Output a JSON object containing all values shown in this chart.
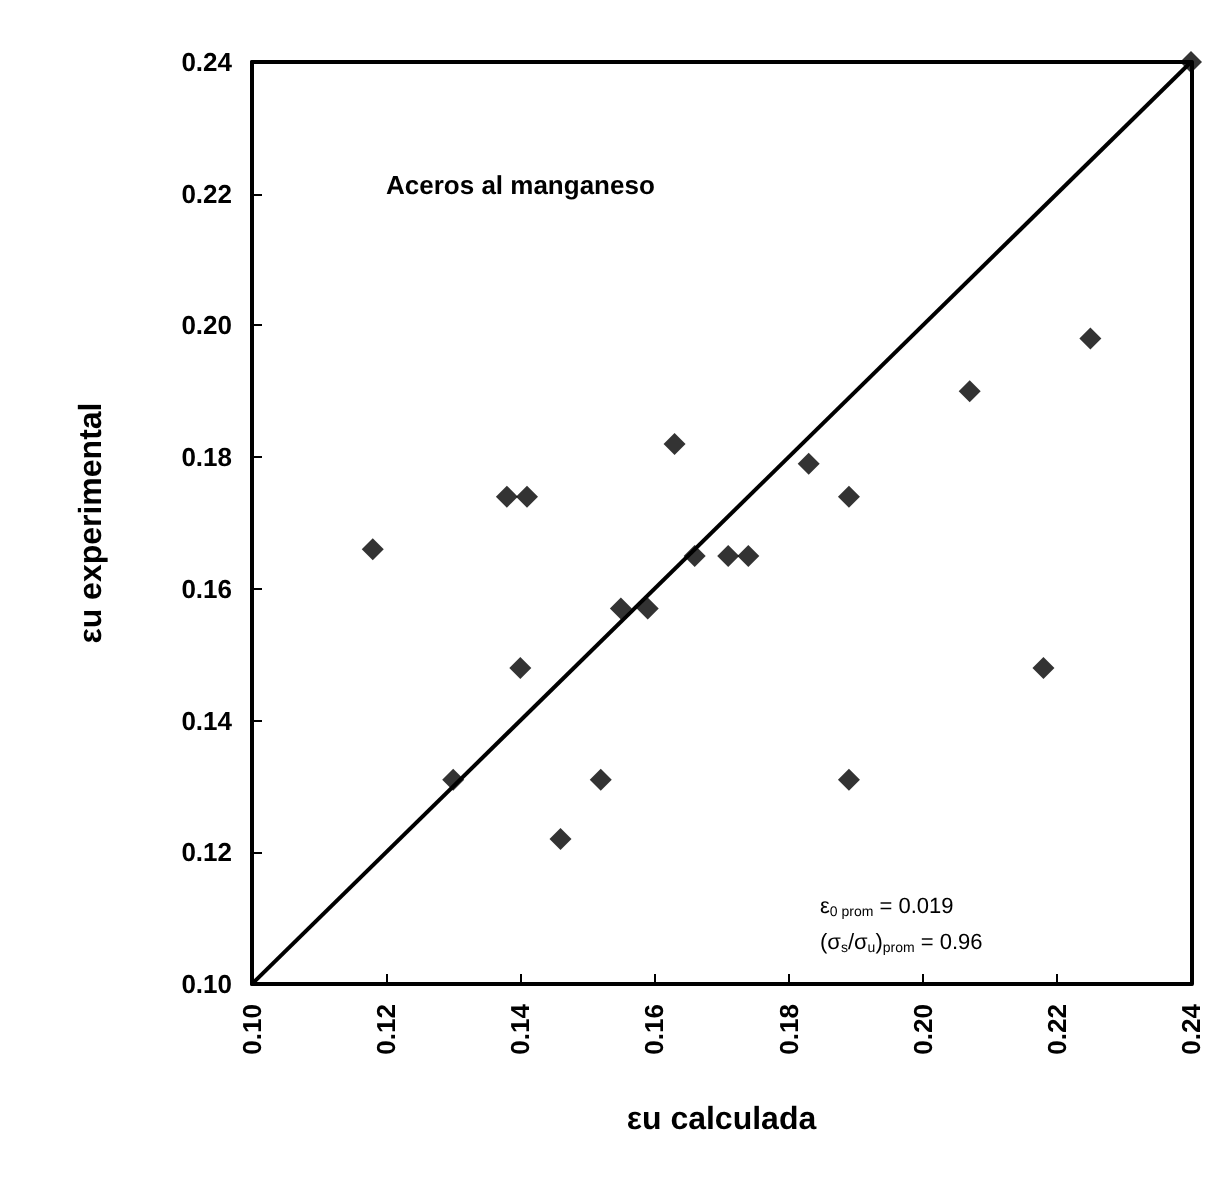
{
  "chart_data": {
    "type": "scatter",
    "xlabel": "εu calculada",
    "ylabel": "εu experimental",
    "xlim": [
      0.1,
      0.24
    ],
    "xticks": [
      {
        "value": 0.1,
        "label": "0.10"
      },
      {
        "value": 0.12,
        "label": "0.12"
      },
      {
        "value": 0.14,
        "label": "0.14"
      },
      {
        "value": 0.16,
        "label": "0.16"
      },
      {
        "value": 0.18,
        "label": "0.18"
      },
      {
        "value": 0.2,
        "label": "0.20"
      },
      {
        "value": 0.22,
        "label": "0.22"
      },
      {
        "value": 0.24,
        "label": "0.24"
      }
    ],
    "ylim": [
      0.1,
      0.24
    ],
    "yticks": [
      {
        "value": 0.1,
        "label": "0.10"
      },
      {
        "value": 0.12,
        "label": "0.12"
      },
      {
        "value": 0.14,
        "label": "0.14"
      },
      {
        "value": 0.16,
        "label": "0.16"
      },
      {
        "value": 0.18,
        "label": "0.18"
      },
      {
        "value": 0.2,
        "label": "0.20"
      },
      {
        "value": 0.22,
        "label": "0.22"
      },
      {
        "value": 0.24,
        "label": "0.24"
      }
    ],
    "grid": false,
    "marker": "diamond",
    "series": [
      {
        "color": "#000000",
        "x": [
          0.118,
          0.138,
          0.141,
          0.163,
          0.166,
          0.155,
          0.159,
          0.14,
          0.13,
          0.152,
          0.146,
          0.171,
          0.174,
          0.183,
          0.189,
          0.207,
          0.225,
          0.218,
          0.189,
          0.24
        ],
        "values": [
          0.166,
          0.174,
          0.174,
          0.182,
          0.165,
          0.157,
          0.157,
          0.148,
          0.131,
          0.131,
          0.122,
          0.165,
          0.165,
          0.179,
          0.174,
          0.19,
          0.198,
          0.148,
          0.131,
          0.24
        ]
      },
      {
        "type": "line",
        "color": "#000000",
        "marker": "none",
        "x": [
          0.1,
          0.24
        ],
        "values": [
          0.1,
          0.24
        ]
      }
    ],
    "annotations": [
      "Aceros al manganeso",
      "ε$_{0 prom}$ = 0.019",
      "(σ$_{s}$/σ$_{u}$)$_{prom}$ = 0.96"
    ]
  }
}
